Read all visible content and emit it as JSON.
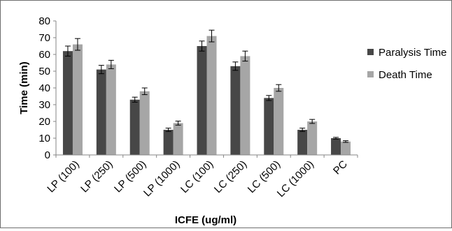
{
  "chart_data": {
    "type": "bar",
    "xlabel": "ICFE (ug/ml)",
    "ylabel": "Time (min)",
    "ylim": [
      0,
      80
    ],
    "yticks": [
      0,
      10,
      20,
      30,
      40,
      50,
      60,
      70,
      80
    ],
    "grid": false,
    "legend_position": "right",
    "categories": [
      "LP (100)",
      "LP (250)",
      "LP (500)",
      "LP (1000)",
      "LC (100)",
      "LC (250)",
      "LC (500)",
      "LC (1000)",
      "PC"
    ],
    "series": [
      {
        "name": "Paralysis Time",
        "color": "#474747",
        "values": [
          62,
          51,
          33,
          15,
          65,
          53,
          34,
          15,
          10
        ],
        "errors": [
          3,
          2.5,
          1.5,
          1,
          3,
          2.5,
          1.5,
          1,
          0.5
        ]
      },
      {
        "name": "Death Time",
        "color": "#a6a6a6",
        "values": [
          66,
          54,
          38,
          19,
          71,
          59,
          40,
          20,
          8
        ],
        "errors": [
          3.5,
          2.5,
          2,
          1.2,
          3.5,
          3,
          2,
          1.2,
          0.5
        ]
      }
    ]
  }
}
